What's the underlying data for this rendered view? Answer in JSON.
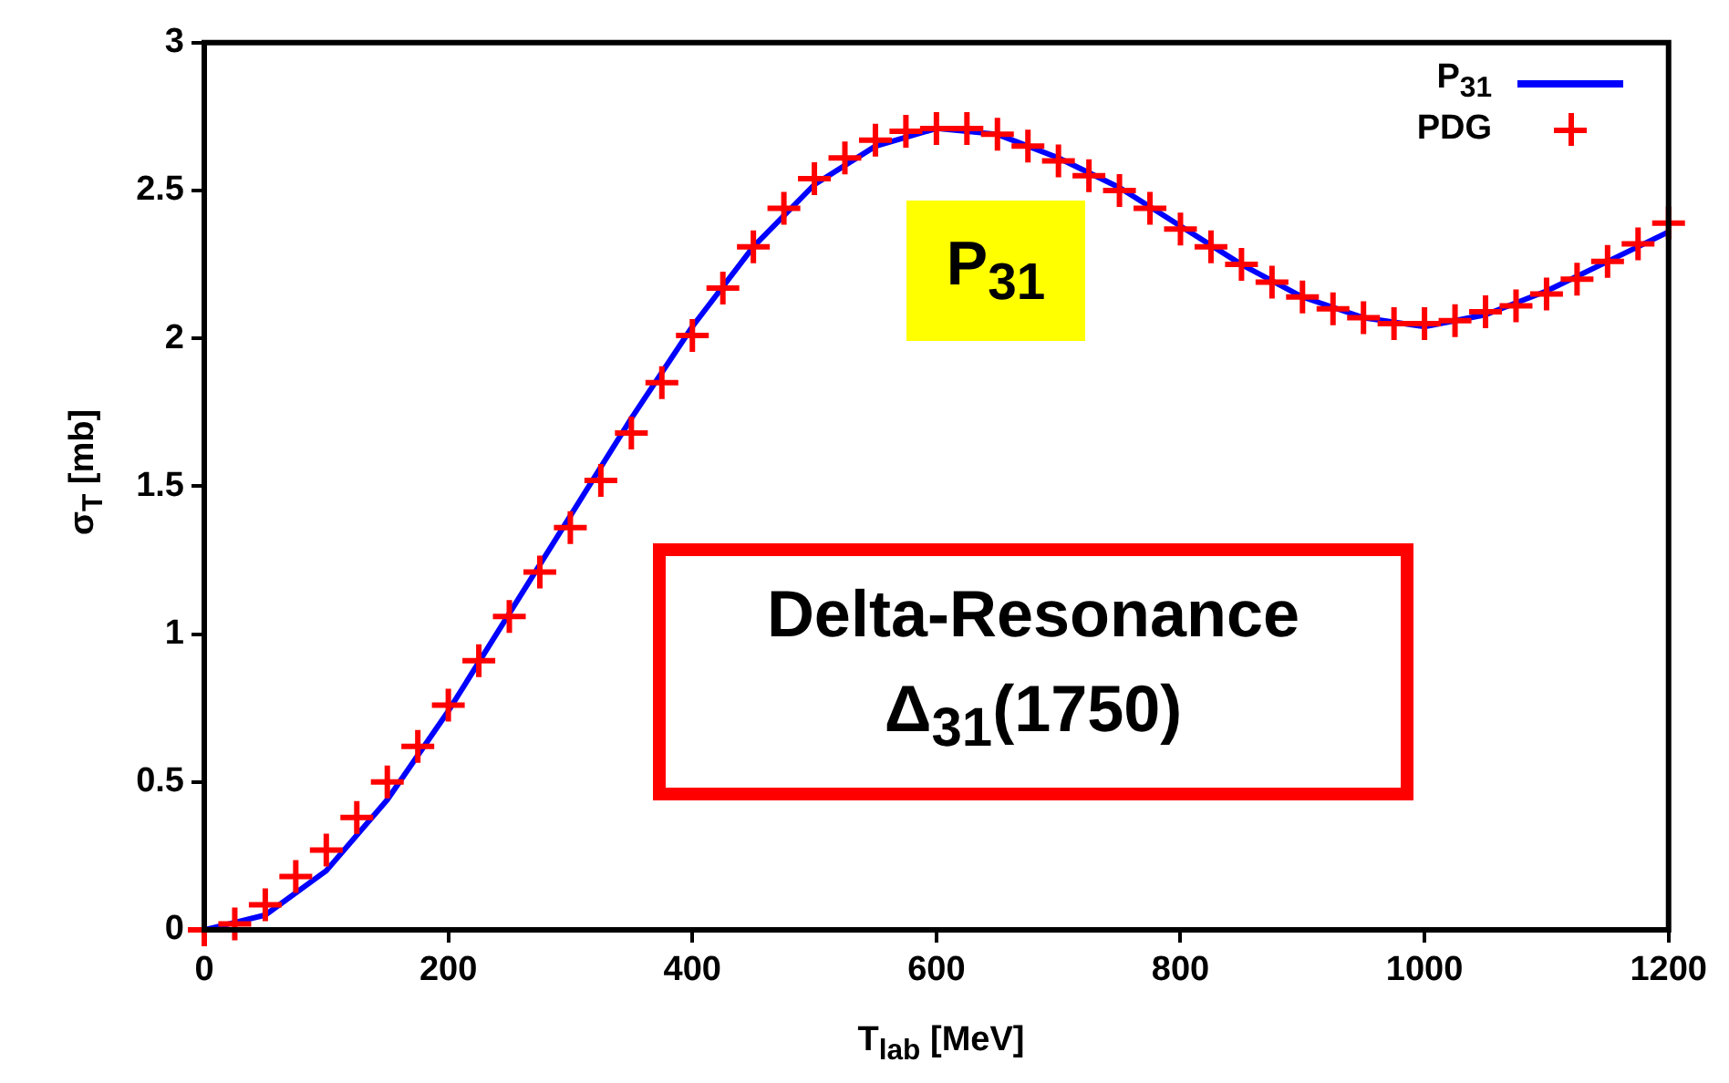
{
  "chart_data": {
    "type": "line",
    "xlabel": "T$_{lab}$ [MeV]",
    "ylabel": "σ$_{T}$ [mb]",
    "annotations": [
      "P$_{31}$",
      "Delta-Resonance",
      "Δ$_{31}$(1750)"
    ],
    "xlim": [
      0,
      1200
    ],
    "xticks": [
      0,
      200,
      400,
      600,
      800,
      1000,
      1200
    ],
    "ylim": [
      0,
      3
    ],
    "yticks": [
      0,
      0.5,
      1,
      1.5,
      2,
      2.5,
      3
    ],
    "grid": false,
    "legend": "top right",
    "series": [
      {
        "name": "P$_{31}$",
        "color": "#0000ff",
        "marker": "none",
        "x": [
          0,
          50,
          100,
          150,
          200,
          250,
          300,
          350,
          400,
          450,
          500,
          550,
          600,
          650,
          700,
          750,
          800,
          850,
          900,
          950,
          1000,
          1050,
          1100,
          1150,
          1200
        ],
        "values": [
          0,
          0.05,
          0.2,
          0.44,
          0.74,
          1.07,
          1.4,
          1.73,
          2.04,
          2.31,
          2.52,
          2.65,
          2.71,
          2.69,
          2.61,
          2.51,
          2.38,
          2.25,
          2.14,
          2.07,
          2.04,
          2.08,
          2.16,
          2.26,
          2.36
        ]
      },
      {
        "name": "PDG",
        "type": "scatter",
        "color": "#ff0000",
        "marker": "cross",
        "x": [
          0,
          25,
          50,
          75,
          100,
          125,
          150,
          175,
          200,
          225,
          250,
          275,
          300,
          325,
          350,
          375,
          400,
          425,
          450,
          475,
          500,
          525,
          550,
          575,
          600,
          625,
          650,
          675,
          700,
          725,
          750,
          775,
          800,
          825,
          850,
          875,
          900,
          925,
          950,
          975,
          1000,
          1025,
          1050,
          1075,
          1100,
          1125,
          1150,
          1175,
          1200
        ],
        "values": [
          0,
          0.02,
          0.085,
          0.18,
          0.27,
          0.38,
          0.5,
          0.62,
          0.76,
          0.91,
          1.06,
          1.21,
          1.36,
          1.52,
          1.68,
          1.85,
          2.01,
          2.17,
          2.31,
          2.44,
          2.54,
          2.61,
          2.67,
          2.7,
          2.71,
          2.71,
          2.69,
          2.65,
          2.6,
          2.55,
          2.5,
          2.44,
          2.37,
          2.31,
          2.25,
          2.19,
          2.14,
          2.1,
          2.07,
          2.05,
          2.05,
          2.06,
          2.09,
          2.11,
          2.15,
          2.2,
          2.26,
          2.32,
          2.39
        ]
      }
    ]
  }
}
